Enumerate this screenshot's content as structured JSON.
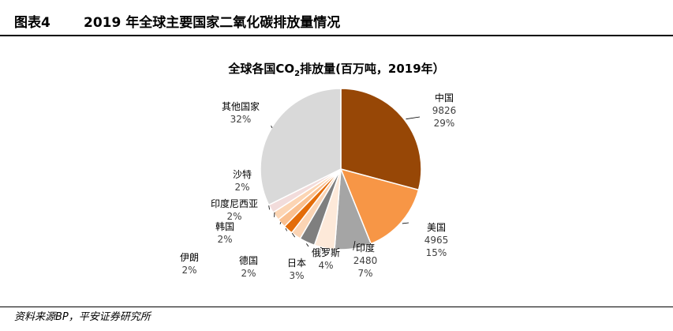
{
  "header": {
    "figure_label": "图表4",
    "title": "2019 年全球主要国家二氧化碳排放量情况"
  },
  "chart_data": {
    "type": "pie",
    "title_pre": "全球各国CO",
    "title_sub": "2",
    "title_post": "排放量(百万吨，2019年）",
    "slices": [
      {
        "name": "中国",
        "value": 9826,
        "value_label": "9826",
        "pct_label": "29%",
        "color": "#974706"
      },
      {
        "name": "美国",
        "value": 4965,
        "value_label": "4965",
        "pct_label": "15%",
        "color": "#F79646"
      },
      {
        "name": "印度",
        "value": 2480,
        "value_label": "2480",
        "pct_label": "7%",
        "color": "#A5A5A5"
      },
      {
        "name": "俄罗斯",
        "value": 1373,
        "value_label": "",
        "pct_label": "4%",
        "color": "#FDE9D9"
      },
      {
        "name": "日本",
        "value": 1050,
        "value_label": "",
        "pct_label": "3%",
        "color": "#7F7F7F"
      },
      {
        "name": "德国",
        "value": 680,
        "value_label": "",
        "pct_label": "2%",
        "color": "#FBD4B4"
      },
      {
        "name": "伊朗",
        "value": 640,
        "value_label": "",
        "pct_label": "2%",
        "color": "#E36C09"
      },
      {
        "name": "韩国",
        "value": 610,
        "value_label": "",
        "pct_label": "2%",
        "color": "#FAC090"
      },
      {
        "name": "印度尼西亚",
        "value": 590,
        "value_label": "",
        "pct_label": "2%",
        "color": "#FCD5B4"
      },
      {
        "name": "沙特",
        "value": 580,
        "value_label": "",
        "pct_label": "2%",
        "color": "#F2DCDB"
      },
      {
        "name": "其他国家",
        "value": 10900,
        "value_label": "",
        "pct_label": "32%",
        "color": "#D9D9D9"
      }
    ]
  },
  "footer": {
    "source": "资料来源BP，平安证券研究所"
  }
}
